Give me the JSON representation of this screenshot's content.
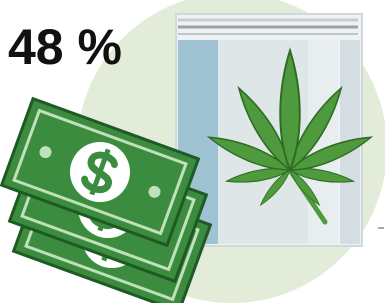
{
  "headline": {
    "text": "48 %"
  }
}
